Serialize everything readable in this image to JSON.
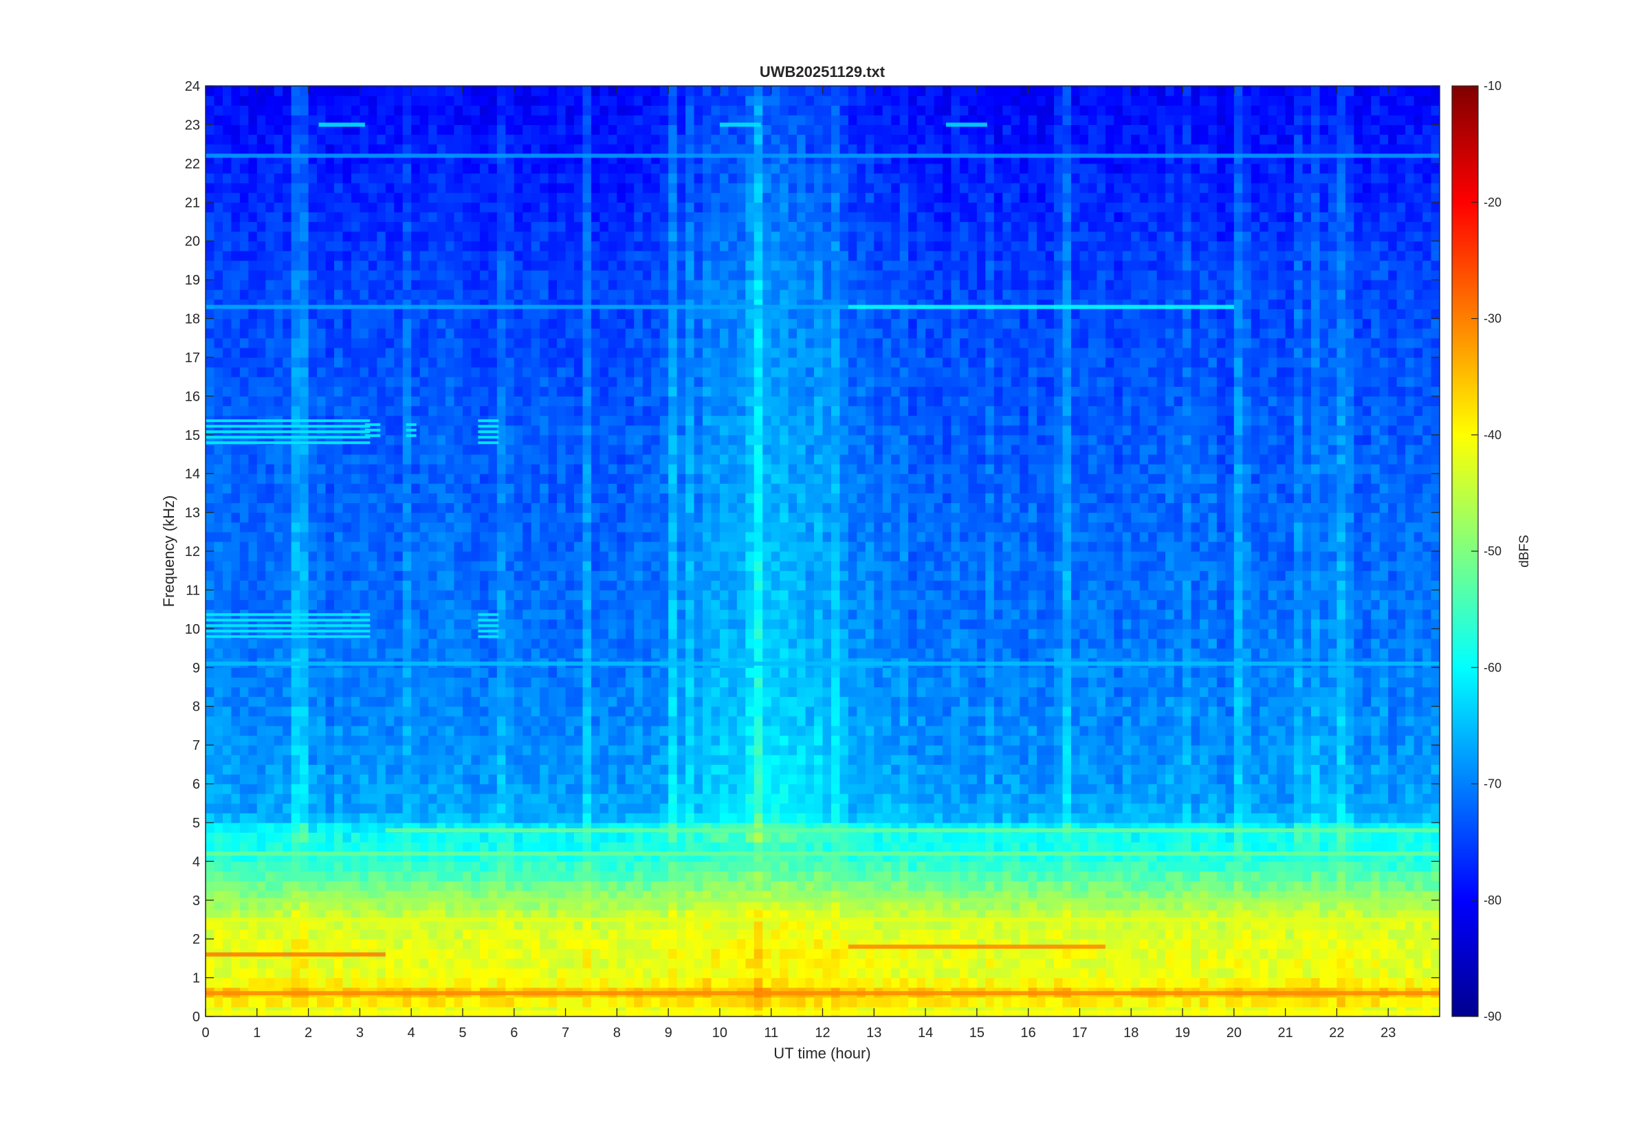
{
  "chart_data": {
    "type": "heatmap",
    "title": "UWB20251129.txt",
    "xlabel": "UT time (hour)",
    "ylabel": "Frequency (kHz)",
    "xlim": [
      0,
      24
    ],
    "ylim": [
      0,
      24
    ],
    "x_ticks": [
      "0",
      "1",
      "2",
      "3",
      "4",
      "5",
      "6",
      "7",
      "8",
      "9",
      "10",
      "11",
      "12",
      "13",
      "14",
      "15",
      "16",
      "17",
      "18",
      "19",
      "20",
      "21",
      "22",
      "23"
    ],
    "y_ticks": [
      "0",
      "1",
      "2",
      "3",
      "4",
      "5",
      "6",
      "7",
      "8",
      "9",
      "10",
      "11",
      "12",
      "13",
      "14",
      "15",
      "16",
      "17",
      "18",
      "19",
      "20",
      "21",
      "22",
      "23",
      "24"
    ],
    "colorbar": {
      "label": "dBFS",
      "range": [
        -90,
        -10
      ],
      "ticks": [
        "-10",
        "-20",
        "-30",
        "-40",
        "-50",
        "-60",
        "-70",
        "-80",
        "-90"
      ],
      "colormap": "jet"
    },
    "background_profile_khz_dbfs": [
      [
        0,
        -44
      ],
      [
        0.6,
        -36
      ],
      [
        1,
        -42
      ],
      [
        1.8,
        -42
      ],
      [
        2.5,
        -44
      ],
      [
        3,
        -48
      ],
      [
        4,
        -57
      ],
      [
        4.8,
        -60
      ],
      [
        5.2,
        -67
      ],
      [
        7,
        -69
      ],
      [
        10,
        -71
      ],
      [
        15,
        -73
      ],
      [
        19,
        -75
      ],
      [
        22,
        -78
      ],
      [
        24,
        -80
      ]
    ],
    "horizontal_lines": [
      {
        "freq_khz": 0.1,
        "t_start": 0,
        "t_end": 24,
        "dbfs": -40
      },
      {
        "freq_khz": 0.6,
        "t_start": 0,
        "t_end": 24,
        "dbfs": -31
      },
      {
        "freq_khz": 1.6,
        "t_start": 0,
        "t_end": 3.5,
        "dbfs": -30
      },
      {
        "freq_khz": 1.8,
        "t_start": 12.5,
        "t_end": 17.5,
        "dbfs": -31
      },
      {
        "freq_khz": 2.5,
        "t_start": 0,
        "t_end": 24,
        "dbfs": -42
      },
      {
        "freq_khz": 3.0,
        "t_start": 0,
        "t_end": 24,
        "dbfs": -47
      },
      {
        "freq_khz": 4.2,
        "t_start": 0,
        "t_end": 24,
        "dbfs": -52
      },
      {
        "freq_khz": 4.8,
        "t_start": 3.5,
        "t_end": 24,
        "dbfs": -52
      },
      {
        "freq_khz": 9.1,
        "t_start": 0,
        "t_end": 24,
        "dbfs": -65
      },
      {
        "freq_khz": 18.3,
        "t_start": 0,
        "t_end": 12.5,
        "dbfs": -67
      },
      {
        "freq_khz": 18.3,
        "t_start": 12.5,
        "t_end": 20,
        "dbfs": -60
      },
      {
        "freq_khz": 22.2,
        "t_start": 0,
        "t_end": 24,
        "dbfs": -68
      },
      {
        "freq_khz": 23.0,
        "t_start": 2.2,
        "t_end": 3.1,
        "dbfs": -62
      },
      {
        "freq_khz": 23.0,
        "t_start": 10,
        "t_end": 10.8,
        "dbfs": -62
      },
      {
        "freq_khz": 23.0,
        "t_start": 14.4,
        "t_end": 15.2,
        "dbfs": -63
      }
    ],
    "burst_blocks": [
      {
        "t_start": 0,
        "t_end": 3.2,
        "f_low_khz": 14.7,
        "f_high_khz": 15.4,
        "dbfs": -62
      },
      {
        "t_start": 3.1,
        "t_end": 3.4,
        "f_low_khz": 14.9,
        "f_high_khz": 15.3,
        "dbfs": -62
      },
      {
        "t_start": 3.9,
        "t_end": 4.1,
        "f_low_khz": 14.9,
        "f_high_khz": 15.3,
        "dbfs": -62
      },
      {
        "t_start": 5.3,
        "t_end": 5.7,
        "f_low_khz": 14.7,
        "f_high_khz": 15.4,
        "dbfs": -62
      },
      {
        "t_start": 0,
        "t_end": 3.2,
        "f_low_khz": 9.8,
        "f_high_khz": 10.4,
        "dbfs": -62
      },
      {
        "t_start": 5.3,
        "t_end": 5.7,
        "f_low_khz": 9.8,
        "f_high_khz": 10.4,
        "dbfs": -62
      }
    ],
    "enhanced_region": {
      "t_start": 8.5,
      "t_end": 13.5,
      "f_low_khz": 0,
      "f_high_khz": 24,
      "dbfs_boost": 7
    }
  }
}
